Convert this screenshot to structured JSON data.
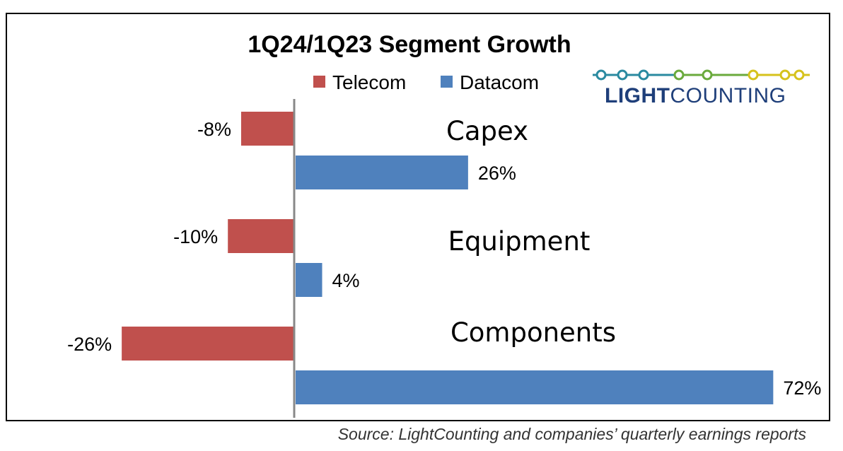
{
  "chart_data": {
    "type": "bar",
    "orientation": "horizontal",
    "title": "1Q24/1Q23 Segment Growth",
    "categories": [
      "Capex",
      "Equipment",
      "Components"
    ],
    "series": [
      {
        "name": "Telecom",
        "color": "#c0504d",
        "values": [
          -8,
          -10,
          -26
        ],
        "labels": [
          "-8%",
          "-10%",
          "-26%"
        ]
      },
      {
        "name": "Datacom",
        "color": "#4f81bd",
        "values": [
          26,
          4,
          72
        ],
        "labels": [
          "26%",
          "4%",
          "72%"
        ]
      }
    ],
    "xlim": [
      -26,
      72
    ],
    "legend_position": "top"
  },
  "logo": {
    "text_bold": "LIGHT",
    "text_regular": "COUNTING",
    "colors": {
      "teal": "#2a8aa0",
      "green": "#6aaa3c",
      "yellow": "#d6c21c",
      "navy": "#1f3f7a"
    }
  },
  "source": "Source: LightCounting and companies’ quarterly earnings reports"
}
